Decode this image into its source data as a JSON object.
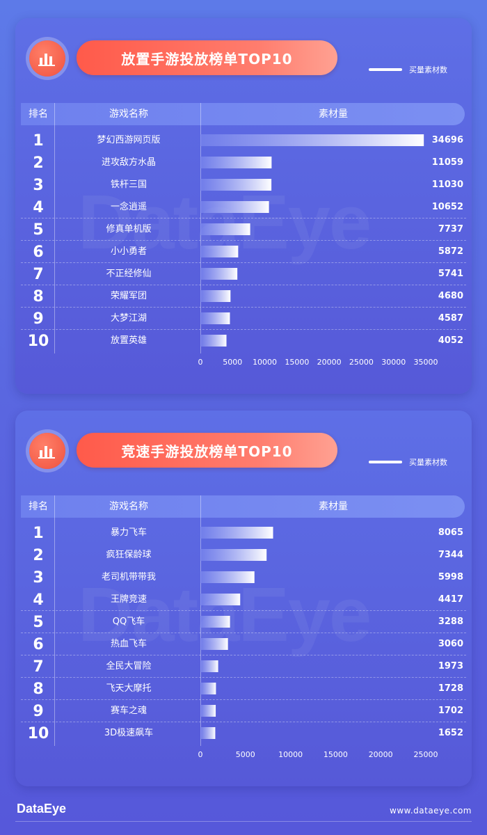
{
  "panels": [
    {
      "title": "放置手游投放榜单TOP10",
      "legend_label": "买量素材数",
      "header": {
        "rank": "排名",
        "name": "游戏名称",
        "value": "素材量"
      },
      "watermark": "DataEye",
      "icon": "bar-chart-icon",
      "chart_data": {
        "type": "bar",
        "orientation": "horizontal",
        "ranks": [
          1,
          2,
          3,
          4,
          5,
          6,
          7,
          8,
          9,
          10
        ],
        "categories": [
          "梦幻西游网页版",
          "进攻敌方水晶",
          "铁杆三国",
          "一念逍遥",
          "修真单机版",
          "小小勇者",
          "不正经修仙",
          "荣耀军团",
          "大梦江湖",
          "放置英雄"
        ],
        "values": [
          34696,
          11059,
          11030,
          10652,
          7737,
          5872,
          5741,
          4680,
          4587,
          4052
        ],
        "xlim": [
          0,
          35000
        ],
        "xticks": [
          "0",
          "5000",
          "10000",
          "15000",
          "20000",
          "25000",
          "30000",
          "35000"
        ]
      }
    },
    {
      "title": "竞速手游投放榜单TOP10",
      "legend_label": "买量素材数",
      "header": {
        "rank": "排名",
        "name": "游戏名称",
        "value": "素材量"
      },
      "watermark": "DataEye",
      "icon": "bar-chart-icon",
      "chart_data": {
        "type": "bar",
        "orientation": "horizontal",
        "ranks": [
          1,
          2,
          3,
          4,
          5,
          6,
          7,
          8,
          9,
          10
        ],
        "categories": [
          "暴力飞车",
          "疯狂保龄球",
          "老司机带带我",
          "王牌竞速",
          "QQ飞车",
          "热血飞车",
          "全民大冒险",
          "飞天大摩托",
          "赛车之魂",
          "3D极速飙车"
        ],
        "values": [
          8065,
          7344,
          5998,
          4417,
          3288,
          3060,
          1973,
          1728,
          1702,
          1652
        ],
        "xlim": [
          0,
          25000
        ],
        "xticks": [
          "0",
          "5000",
          "10000",
          "15000",
          "20000",
          "25000"
        ]
      }
    }
  ],
  "footer": {
    "logo": "DataEye",
    "url": "www.dataeye.com"
  },
  "colors": {
    "bar_start": "#ffffff",
    "bar_end": "#7f8cf0",
    "title_pill": "#ff5a4a"
  }
}
